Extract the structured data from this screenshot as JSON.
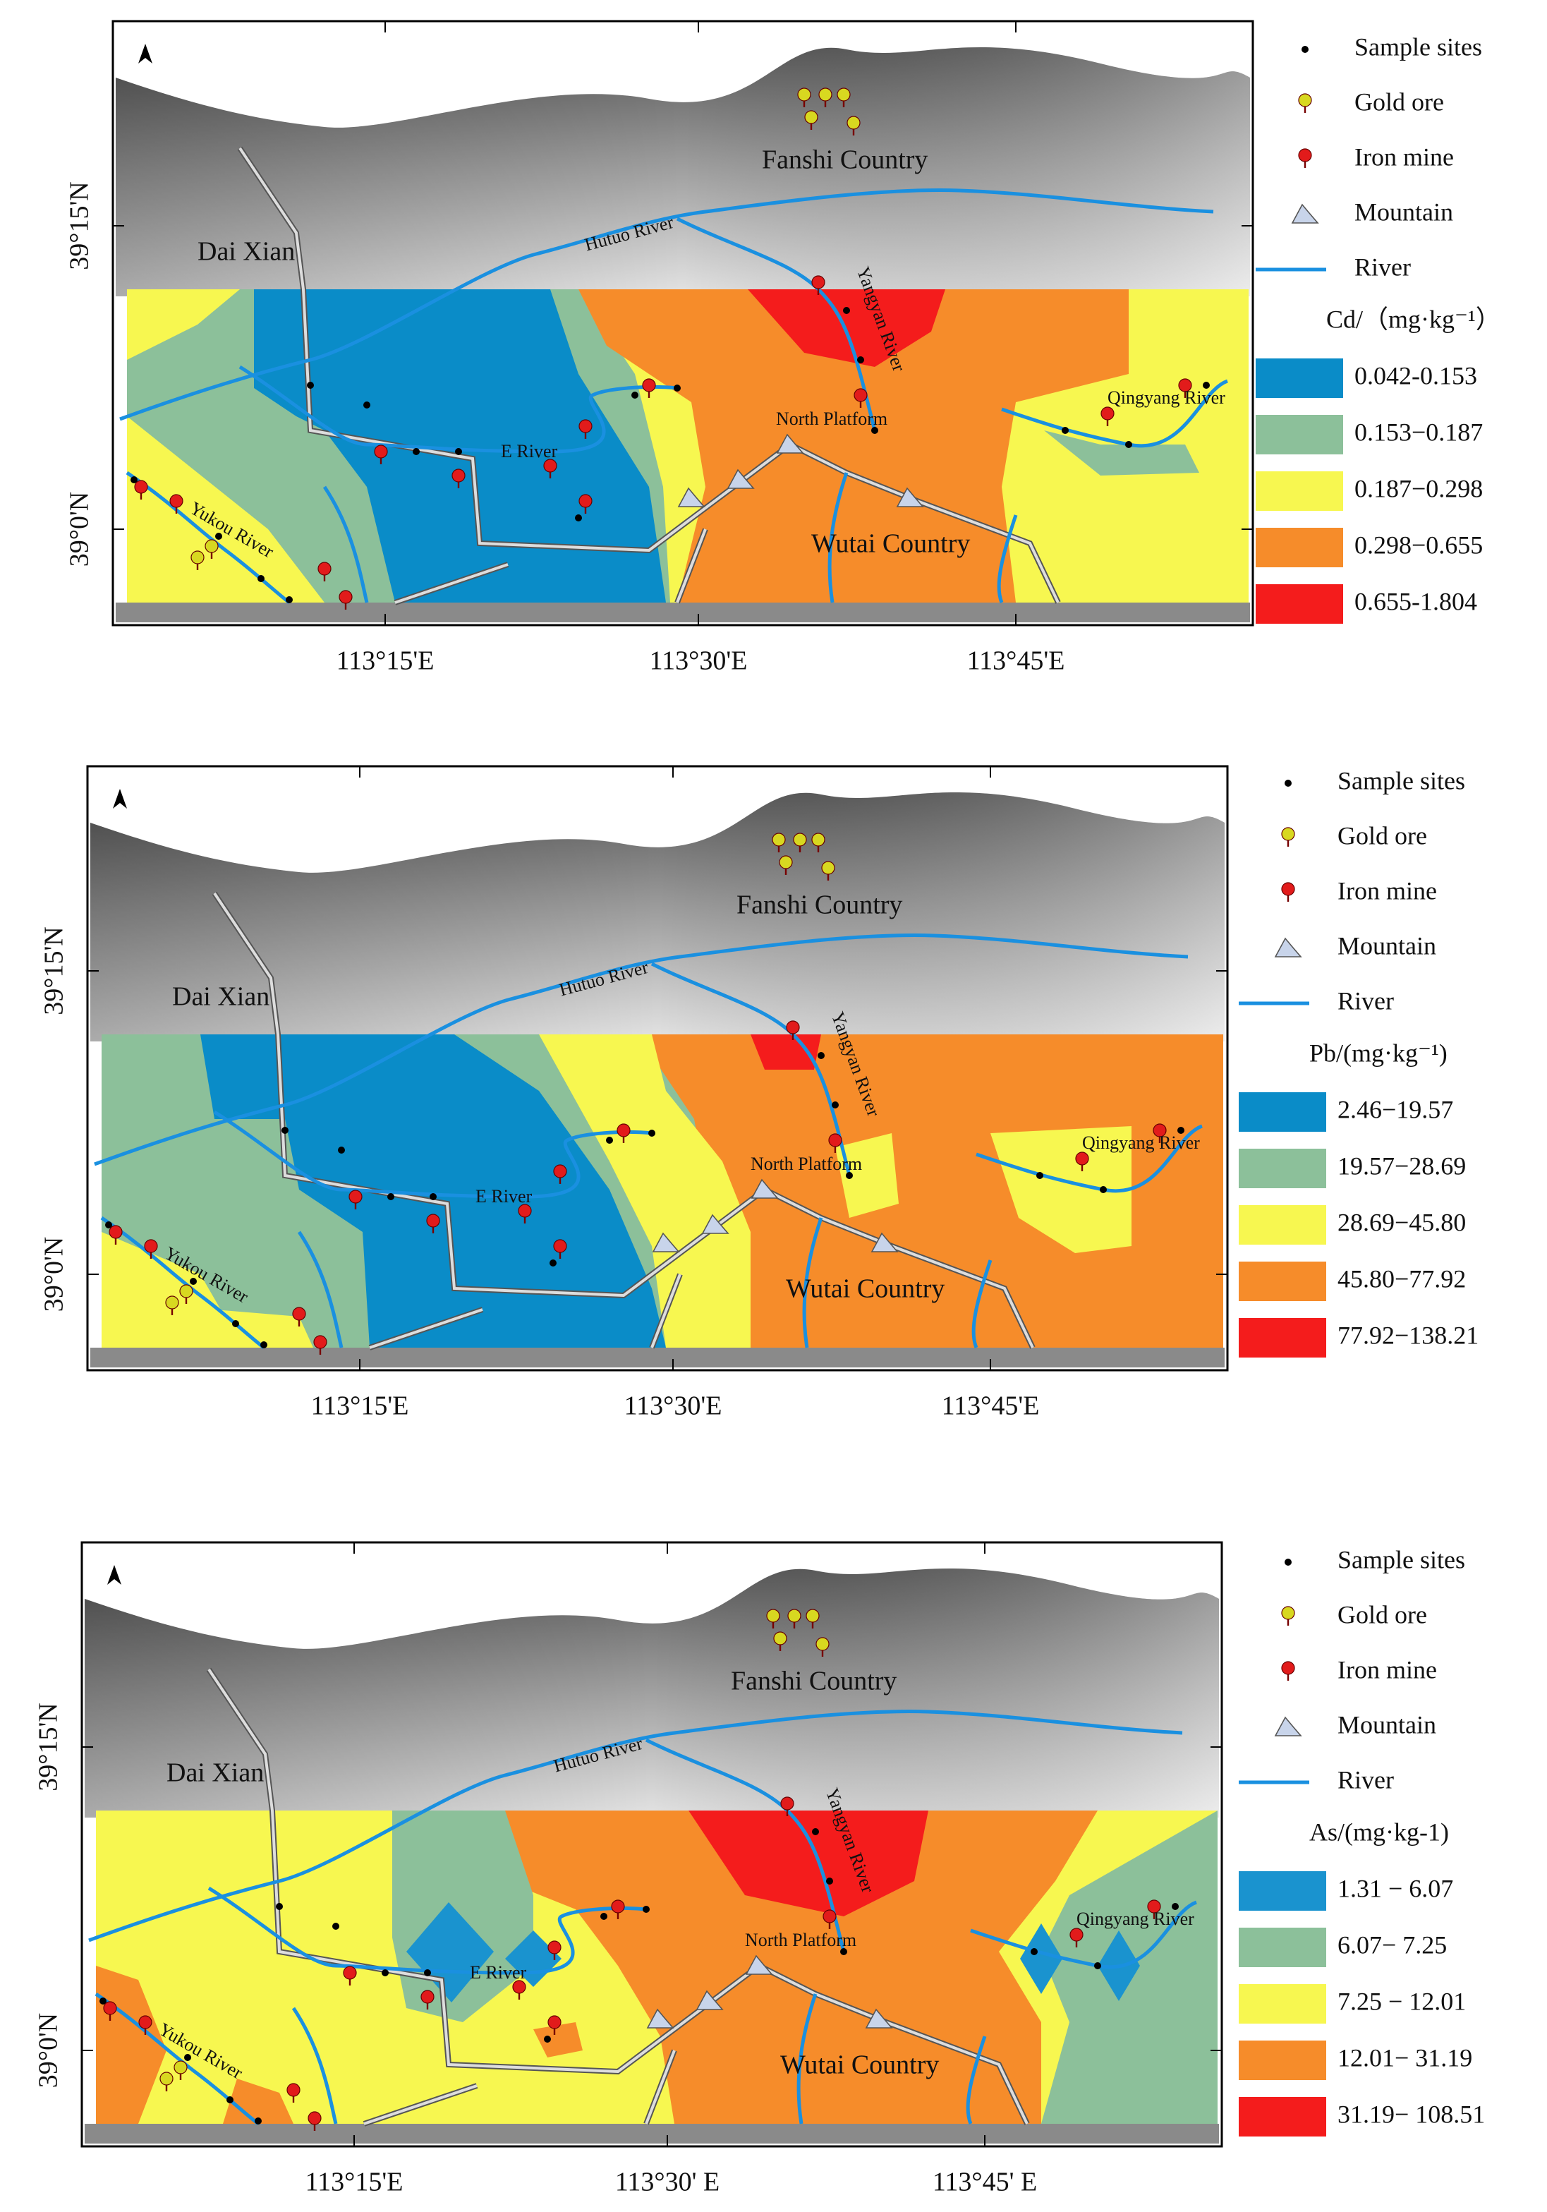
{
  "panels": [
    {
      "place_labels": [
        "Fanshi Country",
        "Dai Xian",
        "Hutuo River",
        "Yangyan River",
        "E River",
        "North Platform",
        "Qingyang River",
        "Yukou River",
        "Wutai Country"
      ],
      "x_labels": [
        "113°15'E",
        "113°30'E",
        "113°45'E"
      ],
      "y_labels": [
        "39°15'N",
        "39°0'N"
      ],
      "legend": {
        "symbols": [
          "Sample sites",
          "Gold ore",
          "Iron mine",
          "Mountain",
          "River"
        ],
        "title": "Cd/（mg·kg⁻¹）",
        "classes": [
          {
            "label": "0.042-0.153",
            "color": "#0a8cc8"
          },
          {
            "label": "0.153−0.187",
            "color": "#8cc09a"
          },
          {
            "label": "0.187−0.298",
            "color": "#f7f750"
          },
          {
            "label": "0.298−0.655",
            "color": "#f68c2a"
          },
          {
            "label": "0.655-1.804",
            "color": "#f41c1c"
          }
        ]
      }
    },
    {
      "place_labels": [
        "Fanshi Country",
        "Dai Xian",
        "Hutuo River",
        "Yangyan River",
        "E River",
        "North Platform",
        "Qingyang River",
        "Yukou River",
        "Wutai Country"
      ],
      "x_labels": [
        "113°15'E",
        "113°30'E",
        "113°45'E"
      ],
      "y_labels": [
        "39°15'N",
        "39°0'N"
      ],
      "legend": {
        "symbols": [
          "Sample sites",
          "Gold ore",
          "Iron mine",
          "Mountain",
          "River"
        ],
        "title": "Pb/(mg·kg⁻¹)",
        "classes": [
          {
            "label": "2.46−19.57",
            "color": "#0a8cc8"
          },
          {
            "label": "19.57−28.69",
            "color": "#8cc09a"
          },
          {
            "label": "28.69−45.80",
            "color": "#f7f750"
          },
          {
            "label": "45.80−77.92",
            "color": "#f68c2a"
          },
          {
            "label": "77.92−138.21",
            "color": "#f41c1c"
          }
        ]
      }
    },
    {
      "place_labels": [
        "Fanshi Country",
        "Dai Xian",
        "Hutuo River",
        "Yangyan River",
        "E River",
        "North Platform",
        "Qingyang River",
        "Yukou River",
        "Wutai Country"
      ],
      "x_labels": [
        "113°15'E",
        "113°30' E",
        "113°45' E"
      ],
      "y_labels": [
        "39°15'N",
        "39°0'N"
      ],
      "legend": {
        "symbols": [
          "Sample sites",
          "Gold ore",
          "Iron mine",
          "Mountain",
          "River"
        ],
        "title": "As/(mg·kg-1)",
        "classes": [
          {
            "label": "1.31 − 6.07",
            "color": "#1a93cf"
          },
          {
            "label": "6.07− 7.25",
            "color": "#8cc09a"
          },
          {
            "label": "7.25 − 12.01",
            "color": "#f7f750"
          },
          {
            "label": "12.01− 31.19",
            "color": "#f68c2a"
          },
          {
            "label": "31.19− 108.51",
            "color": "#f41c1c"
          }
        ]
      }
    }
  ]
}
